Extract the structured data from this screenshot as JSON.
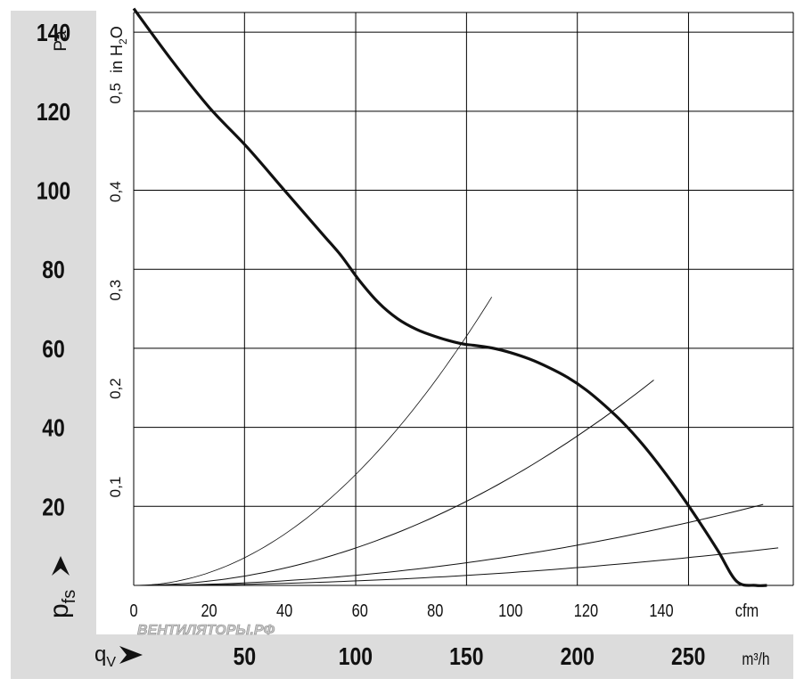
{
  "chart_data": {
    "type": "line",
    "title": "",
    "colors": {
      "panel": "#dcdcdc",
      "grid": "#000000",
      "curve": "#111111",
      "watermark": "#c8c8c8"
    },
    "y_primary": {
      "unit": "Pa",
      "label_main": "p",
      "label_sub": "fs",
      "range": [
        0,
        145
      ],
      "ticks": [
        "20",
        "40",
        "60",
        "80",
        "100",
        "120",
        "140"
      ],
      "tick_values": [
        20,
        40,
        60,
        80,
        100,
        120,
        140
      ]
    },
    "y_secondary": {
      "unit_main": "in H",
      "unit_sub": "2",
      "unit_tail": "O",
      "ticks": [
        "0,1",
        "0,2",
        "0,3",
        "0,4",
        "0,5"
      ],
      "tick_values": [
        0.1,
        0.2,
        0.3,
        0.4,
        0.5
      ],
      "pa_per_unit": 249.1
    },
    "x_cfm": {
      "unit": "cfm",
      "range": [
        0,
        175
      ],
      "ticks": [
        "0",
        "20",
        "40",
        "60",
        "80",
        "100",
        "120",
        "140"
      ],
      "tick_values": [
        0,
        20,
        40,
        60,
        80,
        100,
        120,
        140
      ],
      "grid_values": [
        0,
        29.4,
        58.9,
        88.3,
        117.7,
        147.2,
        175
      ]
    },
    "x_m3h": {
      "label_main": "q",
      "label_sub": "V",
      "unit": "m³/h",
      "ticks": [
        "50",
        "100",
        "150",
        "200",
        "250"
      ],
      "tick_values": [
        50,
        100,
        150,
        200,
        250
      ],
      "m3h_per_cfm": 1.699
    },
    "series": [
      {
        "name": "fan curve",
        "x": [
          0,
          10,
          20,
          30,
          40,
          50,
          55,
          60,
          65,
          70,
          75,
          80,
          85,
          88,
          90,
          95,
          100,
          105,
          110,
          115,
          120,
          125,
          130,
          135,
          140,
          145,
          150,
          155,
          160,
          165,
          168
        ],
        "y": [
          146,
          133,
          121,
          111,
          100,
          89,
          83.5,
          77,
          71.5,
          67.5,
          64.8,
          63,
          61.6,
          61,
          60.8,
          60.1,
          58.9,
          57.3,
          55.2,
          52.7,
          49.5,
          45.5,
          41,
          35.7,
          29.7,
          23.2,
          16.2,
          8.8,
          1,
          0,
          0
        ]
      },
      {
        "name": "system curve 1",
        "x": [
          0,
          95
        ],
        "y": [
          0,
          73
        ],
        "k": 0.008089
      },
      {
        "name": "system curve 2",
        "x": [
          0,
          138
        ],
        "y": [
          0,
          52
        ],
        "k": 0.00273
      },
      {
        "name": "system curve 3",
        "x": [
          0,
          167
        ],
        "y": [
          0,
          20.5
        ],
        "k": 0.000735
      },
      {
        "name": "system curve 4",
        "x": [
          0,
          171
        ],
        "y": [
          0,
          9.5
        ],
        "k": 0.000325
      }
    ],
    "watermark": "ВЕНТИЛЯТОРЫ.РФ"
  }
}
